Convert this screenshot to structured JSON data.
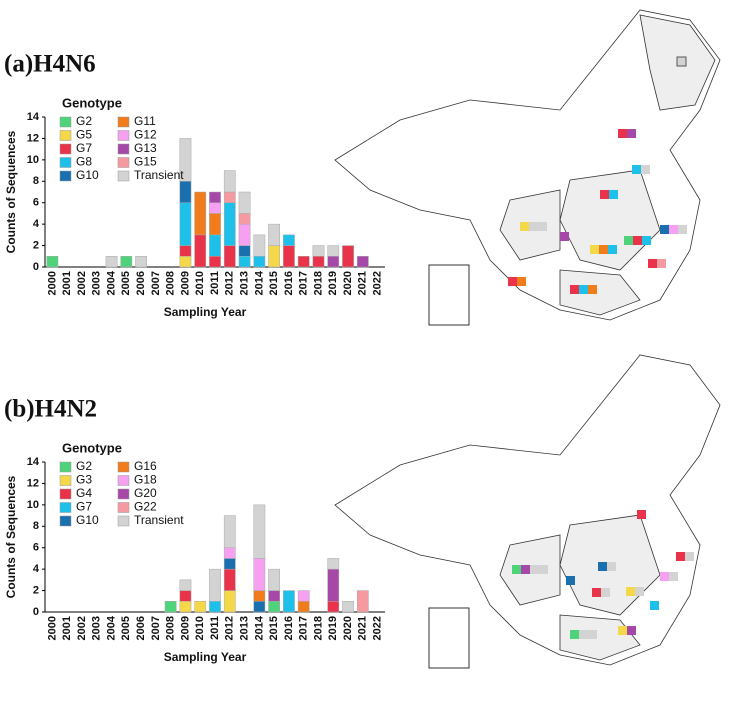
{
  "chart_data": [
    {
      "type": "bar",
      "title": "(a)H4N6",
      "legend_title": "Genotype",
      "x_label": "Sampling Year",
      "y_label": "Counts of Sequences",
      "categories": [
        "2000",
        "2001",
        "2002",
        "2003",
        "2004",
        "2005",
        "2006",
        "2007",
        "2008",
        "2009",
        "2010",
        "2011",
        "2012",
        "2013",
        "2014",
        "2015",
        "2016",
        "2017",
        "2018",
        "2019",
        "2020",
        "2021",
        "2022"
      ],
      "ylim": [
        0,
        14
      ],
      "yticks": [
        0,
        2,
        4,
        6,
        8,
        10,
        12,
        14
      ],
      "stacked": true,
      "series": [
        {
          "name": "G2",
          "color": "#4fd37a",
          "values": [
            1,
            0,
            0,
            0,
            0,
            1,
            0,
            0,
            0,
            0,
            0,
            0,
            0,
            0,
            0,
            0,
            0,
            0,
            0,
            0,
            0,
            0,
            0
          ]
        },
        {
          "name": "G5",
          "color": "#f5d84a",
          "values": [
            0,
            0,
            0,
            0,
            0,
            0,
            0,
            0,
            0,
            1,
            0,
            0,
            0,
            0,
            0,
            2,
            0,
            0,
            0,
            0,
            0,
            0,
            0
          ]
        },
        {
          "name": "G7",
          "color": "#e8334a",
          "values": [
            0,
            0,
            0,
            0,
            0,
            0,
            0,
            0,
            0,
            1,
            3,
            1,
            2,
            0,
            0,
            0,
            2,
            1,
            1,
            0,
            2,
            0,
            0
          ]
        },
        {
          "name": "G8",
          "color": "#1ec0ea",
          "values": [
            0,
            0,
            0,
            0,
            0,
            0,
            0,
            0,
            0,
            4,
            0,
            2,
            4,
            1,
            1,
            0,
            1,
            0,
            0,
            0,
            0,
            0,
            0
          ]
        },
        {
          "name": "G10",
          "color": "#1a6faf",
          "values": [
            0,
            0,
            0,
            0,
            0,
            0,
            0,
            0,
            0,
            2,
            0,
            0,
            0,
            1,
            0,
            0,
            0,
            0,
            0,
            0,
            0,
            0,
            0
          ]
        },
        {
          "name": "G11",
          "color": "#f07c1b",
          "values": [
            0,
            0,
            0,
            0,
            0,
            0,
            0,
            0,
            0,
            0,
            4,
            2,
            0,
            0,
            0,
            0,
            0,
            0,
            0,
            0,
            0,
            0,
            0
          ]
        },
        {
          "name": "G12",
          "color": "#f5a0f0",
          "values": [
            0,
            0,
            0,
            0,
            0,
            0,
            0,
            0,
            0,
            0,
            0,
            1,
            0,
            2,
            0,
            0,
            0,
            0,
            0,
            0,
            0,
            0,
            0
          ]
        },
        {
          "name": "G13",
          "color": "#a648a8",
          "values": [
            0,
            0,
            0,
            0,
            0,
            0,
            0,
            0,
            0,
            0,
            0,
            1,
            0,
            0,
            0,
            0,
            0,
            0,
            0,
            1,
            0,
            1,
            0
          ]
        },
        {
          "name": "G15",
          "color": "#f59aa0",
          "values": [
            0,
            0,
            0,
            0,
            0,
            0,
            0,
            0,
            0,
            0,
            0,
            0,
            1,
            1,
            0,
            0,
            0,
            0,
            0,
            0,
            0,
            0,
            0
          ]
        },
        {
          "name": "Transient",
          "color": "#d3d3d3",
          "values": [
            0,
            0,
            0,
            0,
            1,
            0,
            1,
            0,
            0,
            4,
            0,
            0,
            2,
            2,
            2,
            2,
            0,
            0,
            1,
            1,
            0,
            0,
            0
          ]
        }
      ]
    },
    {
      "type": "bar",
      "title": "(b)H4N2",
      "legend_title": "Genotype",
      "x_label": "Sampling Year",
      "y_label": "Counts of Sequences",
      "categories": [
        "2000",
        "2001",
        "2002",
        "2003",
        "2004",
        "2005",
        "2006",
        "2007",
        "2008",
        "2009",
        "2010",
        "2011",
        "2012",
        "2013",
        "2014",
        "2015",
        "2016",
        "2017",
        "2018",
        "2019",
        "2020",
        "2021",
        "2022"
      ],
      "ylim": [
        0,
        14
      ],
      "yticks": [
        0,
        2,
        4,
        6,
        8,
        10,
        12,
        14
      ],
      "stacked": true,
      "series": [
        {
          "name": "G2",
          "color": "#4fd37a",
          "values": [
            0,
            0,
            0,
            0,
            0,
            0,
            0,
            0,
            1,
            0,
            0,
            0,
            0,
            0,
            0,
            1,
            0,
            0,
            0,
            0,
            0,
            0,
            0
          ]
        },
        {
          "name": "G3",
          "color": "#f5d84a",
          "values": [
            0,
            0,
            0,
            0,
            0,
            0,
            0,
            0,
            0,
            1,
            1,
            0,
            2,
            0,
            0,
            0,
            0,
            0,
            0,
            0,
            0,
            0,
            0
          ]
        },
        {
          "name": "G4",
          "color": "#e8334a",
          "values": [
            0,
            0,
            0,
            0,
            0,
            0,
            0,
            0,
            0,
            1,
            0,
            0,
            2,
            0,
            0,
            0,
            0,
            0,
            0,
            1,
            0,
            0,
            0
          ]
        },
        {
          "name": "G7",
          "color": "#1ec0ea",
          "values": [
            0,
            0,
            0,
            0,
            0,
            0,
            0,
            0,
            0,
            0,
            0,
            1,
            0,
            0,
            0,
            0,
            2,
            0,
            0,
            0,
            0,
            0,
            0
          ]
        },
        {
          "name": "G10",
          "color": "#1a6faf",
          "values": [
            0,
            0,
            0,
            0,
            0,
            0,
            0,
            0,
            0,
            0,
            0,
            0,
            1,
            0,
            1,
            0,
            0,
            0,
            0,
            0,
            0,
            0,
            0
          ]
        },
        {
          "name": "G16",
          "color": "#f07c1b",
          "values": [
            0,
            0,
            0,
            0,
            0,
            0,
            0,
            0,
            0,
            0,
            0,
            0,
            0,
            0,
            1,
            0,
            0,
            1,
            0,
            0,
            0,
            0,
            0
          ]
        },
        {
          "name": "G18",
          "color": "#f5a0f0",
          "values": [
            0,
            0,
            0,
            0,
            0,
            0,
            0,
            0,
            0,
            0,
            0,
            0,
            1,
            0,
            3,
            0,
            0,
            1,
            0,
            0,
            0,
            0,
            0
          ]
        },
        {
          "name": "G20",
          "color": "#a648a8",
          "values": [
            0,
            0,
            0,
            0,
            0,
            0,
            0,
            0,
            0,
            0,
            0,
            0,
            0,
            0,
            0,
            1,
            0,
            0,
            0,
            3,
            0,
            0,
            0
          ]
        },
        {
          "name": "G22",
          "color": "#f59aa0",
          "values": [
            0,
            0,
            0,
            0,
            0,
            0,
            0,
            0,
            0,
            0,
            0,
            0,
            0,
            0,
            0,
            0,
            0,
            0,
            0,
            0,
            0,
            2,
            0
          ]
        },
        {
          "name": "Transient",
          "color": "#d3d3d3",
          "values": [
            0,
            0,
            0,
            0,
            0,
            0,
            0,
            0,
            0,
            1,
            0,
            3,
            3,
            0,
            5,
            2,
            0,
            0,
            0,
            1,
            1,
            0,
            0
          ]
        }
      ]
    }
  ]
}
